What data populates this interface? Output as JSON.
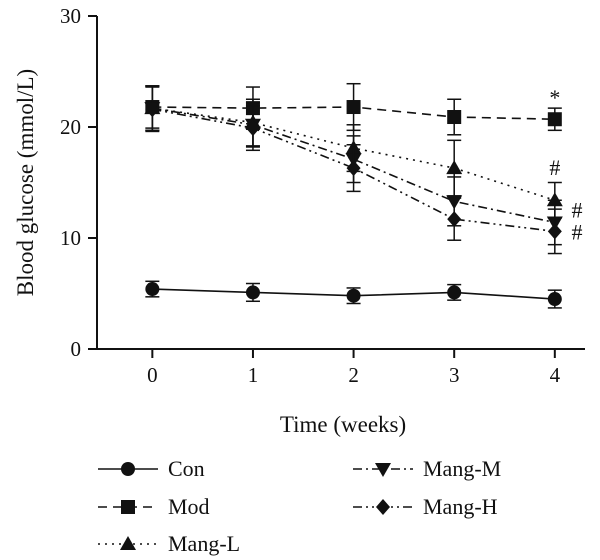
{
  "chart_data": {
    "type": "line",
    "xlabel": "Time (weeks)",
    "ylabel": "Blood glucose (mmol/L)",
    "x": [
      0,
      1,
      2,
      3,
      4
    ],
    "x_ticks": [
      "0",
      "1",
      "2",
      "3",
      "4"
    ],
    "y_ticks": [
      "0",
      "10",
      "20",
      "30"
    ],
    "xlim": [
      -0.55,
      4.3
    ],
    "ylim": [
      0,
      30
    ],
    "grid": false,
    "legend_position": "bottom",
    "error_bars": true,
    "series": [
      {
        "name": "Con",
        "marker": "circle",
        "dash": "solid",
        "values": [
          5.4,
          5.1,
          4.8,
          5.1,
          4.5
        ],
        "errors": [
          0.7,
          0.8,
          0.7,
          0.7,
          0.8
        ]
      },
      {
        "name": "Mod",
        "marker": "square",
        "dash": "dash",
        "values": [
          21.8,
          21.7,
          21.8,
          20.9,
          20.7
        ],
        "errors": [
          1.9,
          1.9,
          2.1,
          1.6,
          1.0
        ]
      },
      {
        "name": "Mang-L",
        "marker": "triangle-up",
        "dash": "dot",
        "values": [
          21.7,
          20.4,
          18.1,
          16.3,
          13.4
        ],
        "errors": [
          2.0,
          2.1,
          2.1,
          2.5,
          1.6
        ]
      },
      {
        "name": "Mang-M",
        "marker": "triangle-down",
        "dash": "dashdot",
        "values": [
          21.7,
          20.2,
          17.1,
          13.3,
          11.4
        ],
        "errors": [
          2.0,
          2.0,
          2.1,
          2.2,
          2.0
        ]
      },
      {
        "name": "Mang-H",
        "marker": "diamond",
        "dash": "dashdotdot",
        "values": [
          21.6,
          19.9,
          16.3,
          11.7,
          10.6
        ],
        "errors": [
          2.0,
          2.0,
          2.1,
          1.9,
          2.0
        ]
      }
    ],
    "annotations": [
      {
        "text": "*",
        "x": 4,
        "y": 22.6
      },
      {
        "text": "#",
        "x": 4,
        "y": 16.3
      },
      {
        "text": "#",
        "x": 4.22,
        "y": 12.5
      },
      {
        "text": "#",
        "x": 4.22,
        "y": 10.5
      }
    ],
    "legend": [
      "Con",
      "Mod",
      "Mang-L",
      "Mang-M",
      "Mang-H"
    ]
  }
}
